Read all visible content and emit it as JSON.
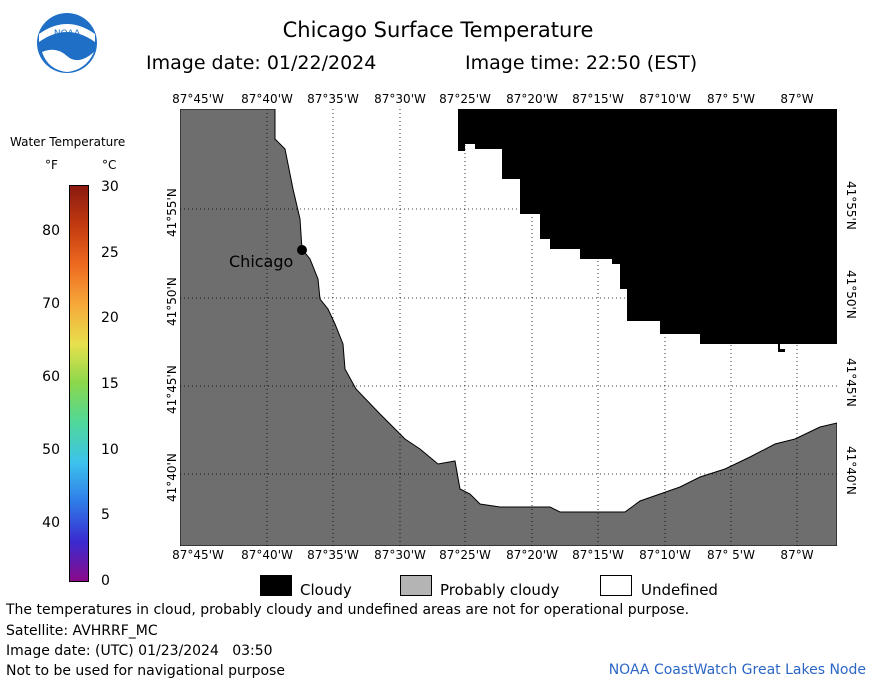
{
  "header": {
    "logo_text": "NOAA",
    "title": "Chicago Surface Temperature",
    "image_date_label": "Image date: 01/22/2024",
    "image_time_label": "Image time: 22:50 (EST)"
  },
  "legend": {
    "title": "Water Temperature",
    "unit_f": "°F",
    "unit_c": "°C",
    "f_ticks": [
      "80",
      "70",
      "60",
      "50",
      "40"
    ],
    "c_ticks": [
      "30",
      "25",
      "20",
      "15",
      "10",
      "5",
      "0"
    ],
    "scale_c_min": 0,
    "scale_c_max": 30,
    "colors": [
      "#8a0a8a",
      "#3a2bd0",
      "#2f7be8",
      "#3cc3ec",
      "#4fd89a",
      "#8ad84c",
      "#e8e04c",
      "#f6a83a",
      "#ee6a20",
      "#c23a10",
      "#8a1a10"
    ]
  },
  "map": {
    "place_label": "Chicago",
    "lon_labels": [
      "87°45'W",
      "87°40'W",
      "87°35'W",
      "87°30'W",
      "87°25'W",
      "87°20'W",
      "87°15'W",
      "87°10'W",
      "87° 5'W",
      "87°W"
    ],
    "lat_labels": [
      "41°55'N",
      "41°50'N",
      "41°45'N",
      "41°40'N"
    ],
    "land_color": "#6e6e6e",
    "cloud_color": "#000000",
    "water_color": "#ffffff"
  },
  "key": {
    "cloudy": "Cloudy",
    "probably_cloudy": "Probably cloudy",
    "undefined": "Undefined"
  },
  "footer": {
    "disclaimer": "The temperatures in cloud, probably cloudy and undefined areas are not for operational purpose.",
    "satellite": "Satellite: AVHRRF_MC",
    "utc_date": "Image date: (UTC) 01/23/2024   03:50",
    "nav_warning": "Not to be used for navigational purpose",
    "credit": "NOAA CoastWatch Great Lakes Node"
  }
}
